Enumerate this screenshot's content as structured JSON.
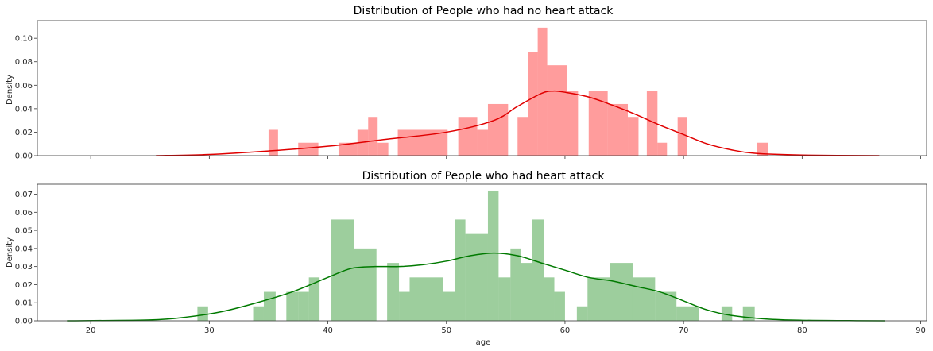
{
  "chart_data": [
    {
      "type": "bar",
      "title": "Distribution of People who had no heart attack",
      "xlabel": "",
      "ylabel": "Density",
      "xlim": [
        15.5,
        90.5
      ],
      "ylim": [
        0,
        0.115
      ],
      "xticks": [
        20,
        30,
        40,
        50,
        60,
        70,
        80,
        90
      ],
      "xticks_labeled": false,
      "yticks": [
        0.0,
        0.02,
        0.04,
        0.06,
        0.08,
        0.1
      ],
      "ytick_labels": [
        "0.00",
        "0.02",
        "0.04",
        "0.06",
        "0.08",
        "0.10"
      ],
      "bar_color": "#ff5a5a",
      "bar_opacity": 0.6,
      "kde_color": "#e00000",
      "bins": [
        {
          "x0": 35.0,
          "x1": 35.8,
          "y": 0.022
        },
        {
          "x0": 37.5,
          "x1": 39.2,
          "y": 0.011
        },
        {
          "x0": 40.9,
          "x1": 42.5,
          "y": 0.011
        },
        {
          "x0": 42.5,
          "x1": 43.4,
          "y": 0.022
        },
        {
          "x0": 43.4,
          "x1": 44.2,
          "y": 0.033
        },
        {
          "x0": 44.2,
          "x1": 45.1,
          "y": 0.011
        },
        {
          "x0": 45.9,
          "x1": 50.1,
          "y": 0.022
        },
        {
          "x0": 51.0,
          "x1": 52.6,
          "y": 0.033
        },
        {
          "x0": 52.6,
          "x1": 53.5,
          "y": 0.022
        },
        {
          "x0": 53.5,
          "x1": 55.2,
          "y": 0.044
        },
        {
          "x0": 56.0,
          "x1": 56.9,
          "y": 0.033
        },
        {
          "x0": 56.9,
          "x1": 57.7,
          "y": 0.088
        },
        {
          "x0": 57.7,
          "x1": 58.5,
          "y": 0.109
        },
        {
          "x0": 58.5,
          "x1": 60.2,
          "y": 0.077
        },
        {
          "x0": 60.2,
          "x1": 61.1,
          "y": 0.055
        },
        {
          "x0": 62.0,
          "x1": 63.6,
          "y": 0.055
        },
        {
          "x0": 63.6,
          "x1": 65.3,
          "y": 0.044
        },
        {
          "x0": 65.3,
          "x1": 66.2,
          "y": 0.033
        },
        {
          "x0": 66.9,
          "x1": 67.8,
          "y": 0.055
        },
        {
          "x0": 67.8,
          "x1": 68.6,
          "y": 0.011
        },
        {
          "x0": 69.5,
          "x1": 70.3,
          "y": 0.033
        },
        {
          "x0": 76.2,
          "x1": 77.1,
          "y": 0.011
        }
      ],
      "kde": {
        "x": [
          25.5,
          30,
          35,
          40,
          45,
          50,
          54,
          56,
          58,
          59,
          60,
          62,
          64,
          66,
          68,
          70,
          72,
          74,
          76,
          80,
          86.5
        ],
        "y": [
          0.0,
          0.001,
          0.004,
          0.008,
          0.014,
          0.02,
          0.03,
          0.042,
          0.053,
          0.055,
          0.054,
          0.05,
          0.043,
          0.035,
          0.026,
          0.018,
          0.01,
          0.005,
          0.002,
          0.0005,
          0.0
        ]
      }
    },
    {
      "type": "bar",
      "title": "Distribution of People who had heart attack",
      "xlabel": "age",
      "ylabel": "Density",
      "xlim": [
        15.5,
        90.5
      ],
      "ylim": [
        0,
        0.0755
      ],
      "xticks": [
        20,
        30,
        40,
        50,
        60,
        70,
        80,
        90
      ],
      "xtick_labels": [
        "20",
        "30",
        "40",
        "50",
        "60",
        "70",
        "80",
        "90"
      ],
      "xticks_labeled": true,
      "yticks": [
        0.0,
        0.01,
        0.02,
        0.03,
        0.04,
        0.05,
        0.06,
        0.07
      ],
      "ytick_labels": [
        "0.00",
        "0.01",
        "0.02",
        "0.03",
        "0.04",
        "0.05",
        "0.06",
        "0.07"
      ],
      "bar_color": "#4ca64c",
      "bar_opacity": 0.55,
      "kde_color": "#007a00",
      "bins": [
        {
          "x0": 29.0,
          "x1": 29.9,
          "y": 0.008
        },
        {
          "x0": 33.7,
          "x1": 34.6,
          "y": 0.008
        },
        {
          "x0": 34.6,
          "x1": 35.6,
          "y": 0.016
        },
        {
          "x0": 36.5,
          "x1": 37.5,
          "y": 0.016
        },
        {
          "x0": 37.5,
          "x1": 38.4,
          "y": 0.016
        },
        {
          "x0": 38.4,
          "x1": 39.3,
          "y": 0.024
        },
        {
          "x0": 40.3,
          "x1": 42.2,
          "y": 0.056
        },
        {
          "x0": 42.2,
          "x1": 44.1,
          "y": 0.04
        },
        {
          "x0": 45.0,
          "x1": 46.0,
          "y": 0.032
        },
        {
          "x0": 46.0,
          "x1": 46.9,
          "y": 0.016
        },
        {
          "x0": 46.9,
          "x1": 49.7,
          "y": 0.024
        },
        {
          "x0": 49.7,
          "x1": 50.7,
          "y": 0.016
        },
        {
          "x0": 50.7,
          "x1": 51.6,
          "y": 0.056
        },
        {
          "x0": 51.6,
          "x1": 53.5,
          "y": 0.048
        },
        {
          "x0": 53.5,
          "x1": 54.4,
          "y": 0.072
        },
        {
          "x0": 54.4,
          "x1": 55.4,
          "y": 0.024
        },
        {
          "x0": 55.4,
          "x1": 56.3,
          "y": 0.04
        },
        {
          "x0": 56.3,
          "x1": 57.2,
          "y": 0.032
        },
        {
          "x0": 57.2,
          "x1": 58.2,
          "y": 0.056
        },
        {
          "x0": 58.2,
          "x1": 59.1,
          "y": 0.024
        },
        {
          "x0": 59.1,
          "x1": 60.0,
          "y": 0.016
        },
        {
          "x0": 61.0,
          "x1": 61.9,
          "y": 0.008
        },
        {
          "x0": 61.9,
          "x1": 63.8,
          "y": 0.024
        },
        {
          "x0": 63.8,
          "x1": 65.7,
          "y": 0.032
        },
        {
          "x0": 65.7,
          "x1": 67.6,
          "y": 0.024
        },
        {
          "x0": 67.6,
          "x1": 69.4,
          "y": 0.016
        },
        {
          "x0": 69.4,
          "x1": 71.3,
          "y": 0.008
        },
        {
          "x0": 73.2,
          "x1": 74.1,
          "y": 0.008
        },
        {
          "x0": 75.0,
          "x1": 76.0,
          "y": 0.008
        }
      ],
      "kde": {
        "x": [
          18,
          25,
          28,
          31,
          34,
          37,
          40,
          42,
          44,
          46,
          48,
          50,
          52,
          54,
          56,
          58,
          60,
          62,
          64,
          66,
          68,
          70,
          72,
          74,
          77,
          80,
          84,
          87
        ],
        "y": [
          0.0,
          0.0005,
          0.002,
          0.005,
          0.01,
          0.016,
          0.024,
          0.029,
          0.03,
          0.03,
          0.031,
          0.033,
          0.036,
          0.0375,
          0.036,
          0.032,
          0.028,
          0.024,
          0.022,
          0.019,
          0.016,
          0.011,
          0.006,
          0.003,
          0.001,
          0.0003,
          0.0001,
          0.0
        ]
      }
    }
  ]
}
